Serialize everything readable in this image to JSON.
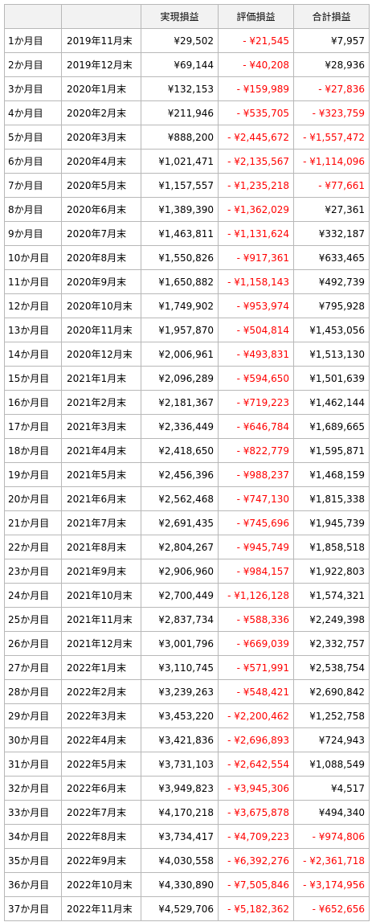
{
  "header": [
    "",
    "",
    "実現損益",
    "評価損益",
    "合計損益"
  ],
  "rows": [
    {
      "month": "1か月目",
      "date": "2019年11月末",
      "realized": "¥29,502",
      "unrealized": "- ¥21,545",
      "total": "¥7,957"
    },
    {
      "month": "2か月目",
      "date": "2019年12月末",
      "realized": "¥69,144",
      "unrealized": "- ¥40,208",
      "total": "¥28,936"
    },
    {
      "month": "3か月目",
      "date": "2020年1月末",
      "realized": "¥132,153",
      "unrealized": "- ¥159,989",
      "total": "- ¥27,836"
    },
    {
      "month": "4か月目",
      "date": "2020年2月末",
      "realized": "¥211,946",
      "unrealized": "- ¥535,705",
      "total": "- ¥323,759"
    },
    {
      "month": "5か月目",
      "date": "2020年3月末",
      "realized": "¥888,200",
      "unrealized": "- ¥2,445,672",
      "total": "- ¥1,557,472"
    },
    {
      "month": "6か月目",
      "date": "2020年4月末",
      "realized": "¥1,021,471",
      "unrealized": "- ¥2,135,567",
      "total": "- ¥1,114,096"
    },
    {
      "month": "7か月目",
      "date": "2020年5月末",
      "realized": "¥1,157,557",
      "unrealized": "- ¥1,235,218",
      "total": "- ¥77,661"
    },
    {
      "month": "8か月目",
      "date": "2020年6月末",
      "realized": "¥1,389,390",
      "unrealized": "- ¥1,362,029",
      "total": "¥27,361"
    },
    {
      "month": "9か月目",
      "date": "2020年7月末",
      "realized": "¥1,463,811",
      "unrealized": "- ¥1,131,624",
      "total": "¥332,187"
    },
    {
      "month": "10か月目",
      "date": "2020年8月末",
      "realized": "¥1,550,826",
      "unrealized": "- ¥917,361",
      "total": "¥633,465"
    },
    {
      "month": "11か月目",
      "date": "2020年9月末",
      "realized": "¥1,650,882",
      "unrealized": "- ¥1,158,143",
      "total": "¥492,739"
    },
    {
      "month": "12か月目",
      "date": "2020年10月末",
      "realized": "¥1,749,902",
      "unrealized": "- ¥953,974",
      "total": "¥795,928"
    },
    {
      "month": "13か月目",
      "date": "2020年11月末",
      "realized": "¥1,957,870",
      "unrealized": "- ¥504,814",
      "total": "¥1,453,056"
    },
    {
      "month": "14か月目",
      "date": "2020年12月末",
      "realized": "¥2,006,961",
      "unrealized": "- ¥493,831",
      "total": "¥1,513,130"
    },
    {
      "month": "15か月目",
      "date": "2021年1月末",
      "realized": "¥2,096,289",
      "unrealized": "- ¥594,650",
      "total": "¥1,501,639"
    },
    {
      "month": "16か月目",
      "date": "2021年2月末",
      "realized": "¥2,181,367",
      "unrealized": "- ¥719,223",
      "total": "¥1,462,144"
    },
    {
      "month": "17か月目",
      "date": "2021年3月末",
      "realized": "¥2,336,449",
      "unrealized": "- ¥646,784",
      "total": "¥1,689,665"
    },
    {
      "month": "18か月目",
      "date": "2021年4月末",
      "realized": "¥2,418,650",
      "unrealized": "- ¥822,779",
      "total": "¥1,595,871"
    },
    {
      "month": "19か月目",
      "date": "2021年5月末",
      "realized": "¥2,456,396",
      "unrealized": "- ¥988,237",
      "total": "¥1,468,159"
    },
    {
      "month": "20か月目",
      "date": "2021年6月末",
      "realized": "¥2,562,468",
      "unrealized": "- ¥747,130",
      "total": "¥1,815,338"
    },
    {
      "month": "21か月目",
      "date": "2021年7月末",
      "realized": "¥2,691,435",
      "unrealized": "- ¥745,696",
      "total": "¥1,945,739"
    },
    {
      "month": "22か月目",
      "date": "2021年8月末",
      "realized": "¥2,804,267",
      "unrealized": "- ¥945,749",
      "total": "¥1,858,518"
    },
    {
      "month": "23か月目",
      "date": "2021年9月末",
      "realized": "¥2,906,960",
      "unrealized": "- ¥984,157",
      "total": "¥1,922,803"
    },
    {
      "month": "24か月目",
      "date": "2021年10月末",
      "realized": "¥2,700,449",
      "unrealized": "- ¥1,126,128",
      "total": "¥1,574,321"
    },
    {
      "month": "25か月目",
      "date": "2021年11月末",
      "realized": "¥2,837,734",
      "unrealized": "- ¥588,336",
      "total": "¥2,249,398"
    },
    {
      "month": "26か月目",
      "date": "2021年12月末",
      "realized": "¥3,001,796",
      "unrealized": "- ¥669,039",
      "total": "¥2,332,757"
    },
    {
      "month": "27か月目",
      "date": "2022年1月末",
      "realized": "¥3,110,745",
      "unrealized": "- ¥571,991",
      "total": "¥2,538,754"
    },
    {
      "month": "28か月目",
      "date": "2022年2月末",
      "realized": "¥3,239,263",
      "unrealized": "- ¥548,421",
      "total": "¥2,690,842"
    },
    {
      "month": "29か月目",
      "date": "2022年3月末",
      "realized": "¥3,453,220",
      "unrealized": "- ¥2,200,462",
      "total": "¥1,252,758"
    },
    {
      "month": "30か月目",
      "date": "2022年4月末",
      "realized": "¥3,421,836",
      "unrealized": "- ¥2,696,893",
      "total": "¥724,943"
    },
    {
      "month": "31か月目",
      "date": "2022年5月末",
      "realized": "¥3,731,103",
      "unrealized": "- ¥2,642,554",
      "total": "¥1,088,549"
    },
    {
      "month": "32か月目",
      "date": "2022年6月末",
      "realized": "¥3,949,823",
      "unrealized": "- ¥3,945,306",
      "total": "¥4,517"
    },
    {
      "month": "33か月目",
      "date": "2022年7月末",
      "realized": "¥4,170,218",
      "unrealized": "- ¥3,675,878",
      "total": "¥494,340"
    },
    {
      "month": "34か月目",
      "date": "2022年8月末",
      "realized": "¥3,734,417",
      "unrealized": "- ¥4,709,223",
      "total": "- ¥974,806"
    },
    {
      "month": "35か月目",
      "date": "2022年9月末",
      "realized": "¥4,030,558",
      "unrealized": "- ¥6,392,276",
      "total": "- ¥2,361,718"
    },
    {
      "month": "36か月目",
      "date": "2022年10月末",
      "realized": "¥4,330,890",
      "unrealized": "- ¥7,505,846",
      "total": "- ¥3,174,956"
    },
    {
      "month": "37か月目",
      "date": "2022年11月末",
      "realized": "¥4,529,706",
      "unrealized": "- ¥5,182,362",
      "total": "- ¥652,656"
    }
  ],
  "colors": {
    "negative": "#ff0000",
    "header_bg": "#f2f2f2",
    "border": "#b8b8b8"
  }
}
